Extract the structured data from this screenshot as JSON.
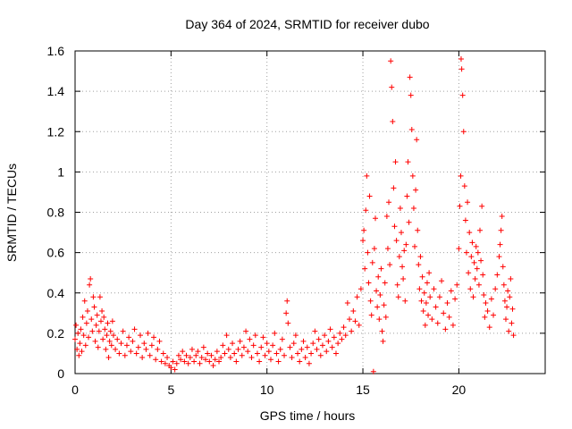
{
  "chart_data": {
    "type": "scatter",
    "title": "Day 364 of 2024, SRMTID for receiver dubo",
    "xlabel": "GPS time / hours",
    "ylabel": "SRMTID / TECUs",
    "xlim": [
      0,
      24.5
    ],
    "ylim": [
      0,
      1.6
    ],
    "x_ticks": [
      0,
      5,
      10,
      15,
      20
    ],
    "x_tick_labels": [
      "0",
      "5",
      "10",
      "15",
      "20"
    ],
    "y_ticks": [
      0,
      0.2,
      0.4,
      0.6,
      0.8,
      1,
      1.2,
      1.4,
      1.6
    ],
    "y_tick_labels": [
      "0",
      "0.2",
      "0.4",
      "0.6",
      "0.8",
      "1",
      "1.2",
      "1.4",
      "1.6"
    ],
    "grid": true,
    "marker": "plus",
    "color": "#ff0000",
    "series": [
      {
        "name": "SRMTID",
        "points": [
          [
            0.0,
            0.17
          ],
          [
            0.05,
            0.24
          ],
          [
            0.1,
            0.12
          ],
          [
            0.15,
            0.2
          ],
          [
            0.2,
            0.09
          ],
          [
            0.25,
            0.15
          ],
          [
            0.3,
            0.22
          ],
          [
            0.35,
            0.11
          ],
          [
            0.4,
            0.28
          ],
          [
            0.45,
            0.19
          ],
          [
            0.5,
            0.36
          ],
          [
            0.55,
            0.14
          ],
          [
            0.6,
            0.25
          ],
          [
            0.65,
            0.31
          ],
          [
            0.7,
            0.18
          ],
          [
            0.75,
            0.44
          ],
          [
            0.8,
            0.47
          ],
          [
            0.85,
            0.27
          ],
          [
            0.9,
            0.21
          ],
          [
            0.95,
            0.38
          ],
          [
            1.0,
            0.33
          ],
          [
            1.05,
            0.16
          ],
          [
            1.1,
            0.24
          ],
          [
            1.15,
            0.29
          ],
          [
            1.2,
            0.13
          ],
          [
            1.25,
            0.21
          ],
          [
            1.3,
            0.38
          ],
          [
            1.35,
            0.26
          ],
          [
            1.4,
            0.31
          ],
          [
            1.45,
            0.17
          ],
          [
            1.5,
            0.28
          ],
          [
            1.55,
            0.22
          ],
          [
            1.6,
            0.12
          ],
          [
            1.65,
            0.19
          ],
          [
            1.7,
            0.25
          ],
          [
            1.75,
            0.08
          ],
          [
            1.8,
            0.16
          ],
          [
            1.85,
            0.21
          ],
          [
            1.9,
            0.14
          ],
          [
            1.95,
            0.26
          ],
          [
            2.0,
            0.19
          ],
          [
            2.1,
            0.12
          ],
          [
            2.2,
            0.17
          ],
          [
            2.3,
            0.1
          ],
          [
            2.4,
            0.15
          ],
          [
            2.5,
            0.21
          ],
          [
            2.6,
            0.09
          ],
          [
            2.7,
            0.14
          ],
          [
            2.8,
            0.18
          ],
          [
            2.9,
            0.11
          ],
          [
            3.0,
            0.16
          ],
          [
            3.1,
            0.22
          ],
          [
            3.2,
            0.1
          ],
          [
            3.3,
            0.13
          ],
          [
            3.4,
            0.19
          ],
          [
            3.5,
            0.08
          ],
          [
            3.6,
            0.15
          ],
          [
            3.7,
            0.12
          ],
          [
            3.8,
            0.2
          ],
          [
            3.9,
            0.09
          ],
          [
            4.0,
            0.14
          ],
          [
            4.1,
            0.18
          ],
          [
            4.2,
            0.07
          ],
          [
            4.3,
            0.12
          ],
          [
            4.4,
            0.16
          ],
          [
            4.5,
            0.06
          ],
          [
            4.6,
            0.1
          ],
          [
            4.7,
            0.05
          ],
          [
            4.8,
            0.08
          ],
          [
            4.9,
            0.04
          ],
          [
            5.0,
            0.03
          ],
          [
            5.1,
            0.06
          ],
          [
            5.2,
            0.02
          ],
          [
            5.3,
            0.05
          ],
          [
            5.4,
            0.09
          ],
          [
            5.5,
            0.07
          ],
          [
            5.6,
            0.11
          ],
          [
            5.7,
            0.06
          ],
          [
            5.8,
            0.09
          ],
          [
            5.9,
            0.05
          ],
          [
            6.0,
            0.08
          ],
          [
            6.1,
            0.12
          ],
          [
            6.2,
            0.06
          ],
          [
            6.3,
            0.09
          ],
          [
            6.4,
            0.11
          ],
          [
            6.5,
            0.05
          ],
          [
            6.6,
            0.08
          ],
          [
            6.7,
            0.13
          ],
          [
            6.8,
            0.07
          ],
          [
            6.9,
            0.1
          ],
          [
            7.0,
            0.06
          ],
          [
            7.1,
            0.09
          ],
          [
            7.2,
            0.04
          ],
          [
            7.3,
            0.07
          ],
          [
            7.4,
            0.11
          ],
          [
            7.5,
            0.06
          ],
          [
            7.6,
            0.08
          ],
          [
            7.7,
            0.14
          ],
          [
            7.8,
            0.1
          ],
          [
            7.9,
            0.19
          ],
          [
            8.0,
            0.12
          ],
          [
            8.1,
            0.08
          ],
          [
            8.2,
            0.15
          ],
          [
            8.3,
            0.1
          ],
          [
            8.4,
            0.06
          ],
          [
            8.5,
            0.12
          ],
          [
            8.6,
            0.16
          ],
          [
            8.7,
            0.09
          ],
          [
            8.8,
            0.13
          ],
          [
            8.9,
            0.21
          ],
          [
            9.0,
            0.11
          ],
          [
            9.1,
            0.17
          ],
          [
            9.2,
            0.08
          ],
          [
            9.3,
            0.14
          ],
          [
            9.4,
            0.19
          ],
          [
            9.5,
            0.1
          ],
          [
            9.6,
            0.06
          ],
          [
            9.7,
            0.13
          ],
          [
            9.8,
            0.18
          ],
          [
            9.9,
            0.09
          ],
          [
            10.0,
            0.15
          ],
          [
            10.1,
            0.11
          ],
          [
            10.2,
            0.07
          ],
          [
            10.3,
            0.14
          ],
          [
            10.4,
            0.2
          ],
          [
            10.5,
            0.1
          ],
          [
            10.6,
            0.06
          ],
          [
            10.7,
            0.12
          ],
          [
            10.8,
            0.17
          ],
          [
            10.9,
            0.09
          ],
          [
            11.0,
            0.3
          ],
          [
            11.05,
            0.36
          ],
          [
            11.1,
            0.25
          ],
          [
            11.2,
            0.13
          ],
          [
            11.3,
            0.08
          ],
          [
            11.4,
            0.15
          ],
          [
            11.5,
            0.19
          ],
          [
            11.6,
            0.1
          ],
          [
            11.7,
            0.06
          ],
          [
            11.8,
            0.12
          ],
          [
            11.9,
            0.16
          ],
          [
            12.0,
            0.08
          ],
          [
            12.1,
            0.13
          ],
          [
            12.2,
            0.05
          ],
          [
            12.3,
            0.1
          ],
          [
            12.4,
            0.15
          ],
          [
            12.5,
            0.21
          ],
          [
            12.6,
            0.12
          ],
          [
            12.7,
            0.17
          ],
          [
            12.8,
            0.09
          ],
          [
            12.9,
            0.14
          ],
          [
            13.0,
            0.19
          ],
          [
            13.1,
            0.11
          ],
          [
            13.2,
            0.16
          ],
          [
            13.3,
            0.22
          ],
          [
            13.4,
            0.13
          ],
          [
            13.5,
            0.18
          ],
          [
            13.6,
            0.1
          ],
          [
            13.7,
            0.15
          ],
          [
            13.8,
            0.2
          ],
          [
            13.9,
            0.17
          ],
          [
            14.0,
            0.23
          ],
          [
            14.1,
            0.19
          ],
          [
            14.2,
            0.35
          ],
          [
            14.3,
            0.27
          ],
          [
            14.4,
            0.21
          ],
          [
            14.5,
            0.31
          ],
          [
            14.6,
            0.26
          ],
          [
            14.7,
            0.38
          ],
          [
            14.8,
            0.24
          ],
          [
            14.9,
            0.42
          ],
          [
            15.0,
            0.66
          ],
          [
            15.05,
            0.71
          ],
          [
            15.1,
            0.52
          ],
          [
            15.15,
            0.81
          ],
          [
            15.2,
            0.98
          ],
          [
            15.25,
            0.6
          ],
          [
            15.3,
            0.45
          ],
          [
            15.35,
            0.88
          ],
          [
            15.4,
            0.36
          ],
          [
            15.45,
            0.29
          ],
          [
            15.5,
            0.55
          ],
          [
            15.55,
            0.01
          ],
          [
            15.6,
            0.62
          ],
          [
            15.65,
            0.77
          ],
          [
            15.7,
            0.41
          ],
          [
            15.75,
            0.33
          ],
          [
            15.8,
            0.48
          ],
          [
            15.85,
            0.27
          ],
          [
            15.9,
            0.39
          ],
          [
            15.95,
            0.52
          ],
          [
            16.0,
            0.21
          ],
          [
            16.05,
            0.16
          ],
          [
            16.1,
            0.34
          ],
          [
            16.15,
            0.45
          ],
          [
            16.2,
            0.28
          ],
          [
            16.25,
            0.78
          ],
          [
            16.3,
            0.62
          ],
          [
            16.35,
            0.85
          ],
          [
            16.4,
            0.54
          ],
          [
            16.45,
            1.55
          ],
          [
            16.5,
            1.42
          ],
          [
            16.55,
            1.25
          ],
          [
            16.6,
            0.92
          ],
          [
            16.65,
            0.73
          ],
          [
            16.7,
            1.05
          ],
          [
            16.75,
            0.66
          ],
          [
            16.8,
            0.44
          ],
          [
            16.85,
            0.38
          ],
          [
            16.9,
            0.58
          ],
          [
            16.95,
            0.82
          ],
          [
            17.0,
            0.7
          ],
          [
            17.05,
            0.53
          ],
          [
            17.1,
            0.47
          ],
          [
            17.15,
            0.61
          ],
          [
            17.2,
            0.36
          ],
          [
            17.25,
            0.64
          ],
          [
            17.3,
            0.88
          ],
          [
            17.35,
            1.05
          ],
          [
            17.4,
            0.75
          ],
          [
            17.45,
            1.47
          ],
          [
            17.5,
            1.38
          ],
          [
            17.55,
            1.21
          ],
          [
            17.6,
            0.98
          ],
          [
            17.65,
            0.82
          ],
          [
            17.7,
            0.63
          ],
          [
            17.75,
            0.91
          ],
          [
            17.8,
            1.16
          ],
          [
            17.85,
            0.71
          ],
          [
            17.9,
            0.54
          ],
          [
            17.95,
            0.42
          ],
          [
            18.0,
            0.58
          ],
          [
            18.05,
            0.36
          ],
          [
            18.1,
            0.48
          ],
          [
            18.15,
            0.31
          ],
          [
            18.2,
            0.4
          ],
          [
            18.25,
            0.24
          ],
          [
            18.3,
            0.35
          ],
          [
            18.35,
            0.45
          ],
          [
            18.4,
            0.29
          ],
          [
            18.45,
            0.5
          ],
          [
            18.5,
            0.38
          ],
          [
            18.6,
            0.27
          ],
          [
            18.7,
            0.42
          ],
          [
            18.8,
            0.33
          ],
          [
            18.9,
            0.25
          ],
          [
            19.0,
            0.38
          ],
          [
            19.1,
            0.46
          ],
          [
            19.2,
            0.3
          ],
          [
            19.3,
            0.22
          ],
          [
            19.4,
            0.35
          ],
          [
            19.5,
            0.28
          ],
          [
            19.6,
            0.41
          ],
          [
            19.7,
            0.24
          ],
          [
            19.8,
            0.37
          ],
          [
            19.9,
            0.44
          ],
          [
            20.0,
            0.62
          ],
          [
            20.05,
            0.83
          ],
          [
            20.1,
            0.98
          ],
          [
            20.12,
            1.56
          ],
          [
            20.15,
            1.51
          ],
          [
            20.2,
            1.38
          ],
          [
            20.25,
            1.2
          ],
          [
            20.3,
            0.93
          ],
          [
            20.35,
            0.76
          ],
          [
            20.4,
            0.6
          ],
          [
            20.45,
            0.85
          ],
          [
            20.5,
            0.5
          ],
          [
            20.55,
            0.7
          ],
          [
            20.6,
            0.42
          ],
          [
            20.65,
            0.58
          ],
          [
            20.7,
            0.65
          ],
          [
            20.75,
            0.38
          ],
          [
            20.8,
            0.55
          ],
          [
            20.85,
            0.47
          ],
          [
            20.9,
            0.63
          ],
          [
            20.95,
            0.52
          ],
          [
            21.0,
            0.6
          ],
          [
            21.05,
            0.44
          ],
          [
            21.1,
            0.71
          ],
          [
            21.15,
            0.56
          ],
          [
            21.2,
            0.83
          ],
          [
            21.25,
            0.49
          ],
          [
            21.3,
            0.39
          ],
          [
            21.35,
            0.28
          ],
          [
            21.4,
            0.35
          ],
          [
            21.5,
            0.31
          ],
          [
            21.6,
            0.23
          ],
          [
            21.7,
            0.37
          ],
          [
            21.8,
            0.29
          ],
          [
            21.9,
            0.42
          ],
          [
            22.0,
            0.49
          ],
          [
            22.1,
            0.58
          ],
          [
            22.15,
            0.64
          ],
          [
            22.2,
            0.71
          ],
          [
            22.25,
            0.78
          ],
          [
            22.3,
            0.53
          ],
          [
            22.35,
            0.44
          ],
          [
            22.4,
            0.36
          ],
          [
            22.45,
            0.27
          ],
          [
            22.5,
            0.33
          ],
          [
            22.55,
            0.41
          ],
          [
            22.6,
            0.21
          ],
          [
            22.65,
            0.38
          ],
          [
            22.7,
            0.47
          ],
          [
            22.75,
            0.25
          ],
          [
            22.8,
            0.32
          ],
          [
            22.85,
            0.19
          ]
        ]
      }
    ]
  }
}
